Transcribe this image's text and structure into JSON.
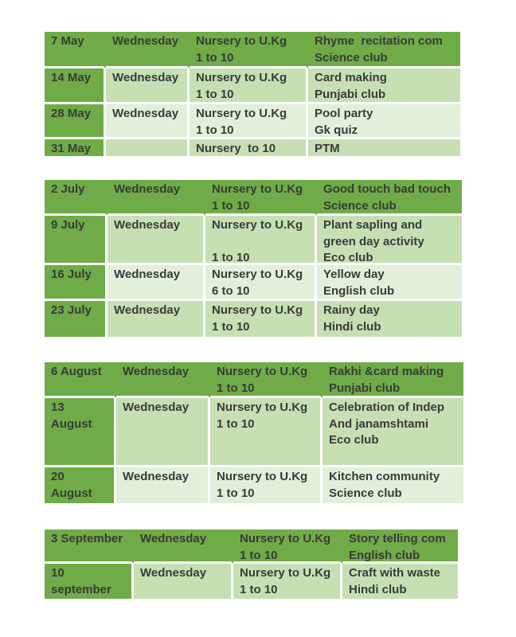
{
  "colors": {
    "dark_green": "#6fac47",
    "light_green": "#c6e0b4",
    "pale_green": "#e2efda",
    "text": "#3a3a3a",
    "border": "#ffffff",
    "page_bg": "#ffffff"
  },
  "blocks": [
    {
      "id": "may",
      "rows": [
        {
          "date": "7 May",
          "day": "Wednesday",
          "classes": "Nursery to U.Kg\n1 to 10",
          "activity": "Rhyme  recitation com\nScience club"
        },
        {
          "date": "14 May",
          "day": "Wednesday",
          "classes": "Nursery to U.Kg\n1 to 10",
          "activity": "Card making\nPunjabi club"
        },
        {
          "date": "28 May",
          "day": "Wednesday",
          "classes": "Nursery to U.Kg\n1 to 10",
          "activity": "Pool party\nGk quiz"
        },
        {
          "date": "31 May",
          "day": "",
          "classes": "Nursery  to 10",
          "activity": "PTM"
        }
      ]
    },
    {
      "id": "july",
      "rows": [
        {
          "date": "2 July",
          "day": "Wednesday",
          "classes": "Nursery to U.Kg\n1 to 10",
          "activity": "Good touch bad touch\nScience club"
        },
        {
          "date": "9 July",
          "day": "Wednesday",
          "classes": "Nursery to U.Kg\n\n1 to 10",
          "activity": "Plant sapling and\ngreen day activity\nEco club"
        },
        {
          "date": "16 July",
          "day": "Wednesday",
          "classes": "Nursery to U.Kg\n6 to 10",
          "activity": "Yellow day\nEnglish club"
        },
        {
          "date": "23 July",
          "day": "Wednesday",
          "classes": "Nursery to U.Kg\n1 to 10",
          "activity": "Rainy day\nHindi club"
        }
      ]
    },
    {
      "id": "august",
      "rows": [
        {
          "date": "6 August",
          "day": "Wednesday",
          "classes": "Nursery to U.Kg\n1 to 10",
          "activity": "Rakhi &card making\nPunjabi club"
        },
        {
          "date": "13 August",
          "day": "Wednesday",
          "classes": "Nursery to U.Kg\n1 to 10",
          "activity": "Celebration of Indep\nAnd janamshtami\nEco club"
        },
        {
          "date": "20 August",
          "day": "Wednesday",
          "classes": "Nursery to U.Kg\n1 to 10",
          "activity": "Kitchen community\nScience club"
        }
      ]
    },
    {
      "id": "september",
      "rows": [
        {
          "date": "3 September",
          "day": "Wednesday",
          "classes": "Nursery to U.Kg\n1 to 10",
          "activity": "Story telling com\nEnglish club"
        },
        {
          "date": "10 september",
          "day": "Wednesday",
          "classes": "Nursery to U.Kg\n1 to 10",
          "activity": "Craft with waste\nHindi club"
        }
      ]
    }
  ]
}
